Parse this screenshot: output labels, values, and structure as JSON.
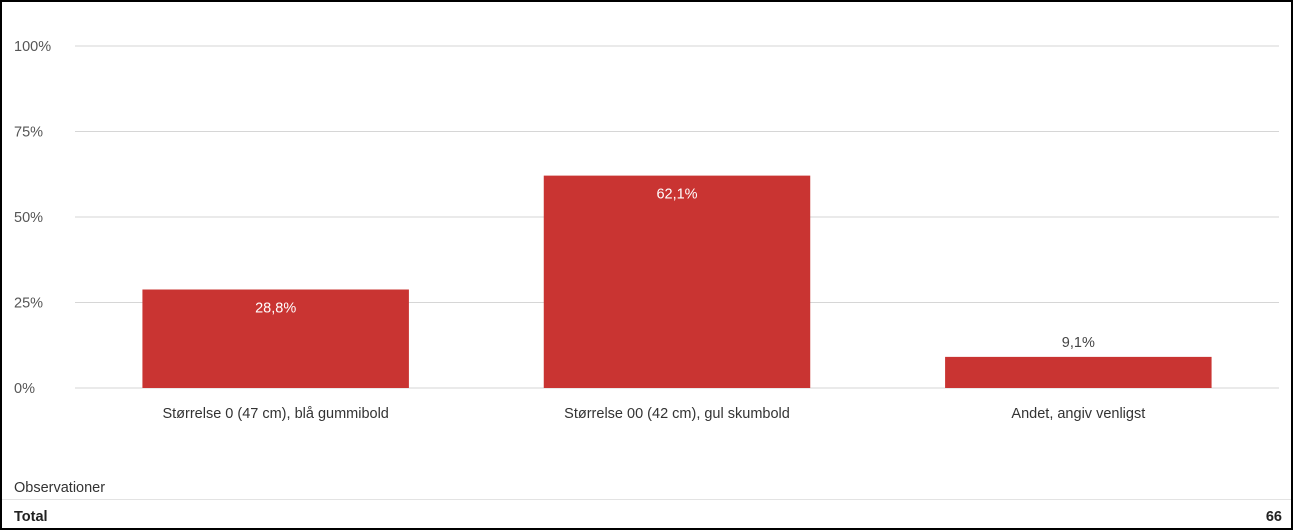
{
  "chart_data": {
    "type": "bar",
    "categories": [
      "Størrelse 0 (47 cm), blå gummibold",
      "Størrelse 00 (42 cm), gul skumbold",
      "Andet, angiv venligst"
    ],
    "values": [
      28.8,
      62.1,
      9.1
    ],
    "value_labels": [
      "28,8%",
      "62,1%",
      "9,1%"
    ],
    "ylim": [
      0,
      100
    ],
    "yticks": [
      0,
      25,
      50,
      75,
      100
    ],
    "ytick_labels": [
      "0%",
      "25%",
      "50%",
      "75%",
      "100%"
    ],
    "grid": true,
    "bar_color": "#c93432",
    "label_inside_color": "#ffffff",
    "label_outside_color": "#444444"
  },
  "observations": {
    "label": "Observationer",
    "total_label": "Total",
    "total_value": "66"
  }
}
